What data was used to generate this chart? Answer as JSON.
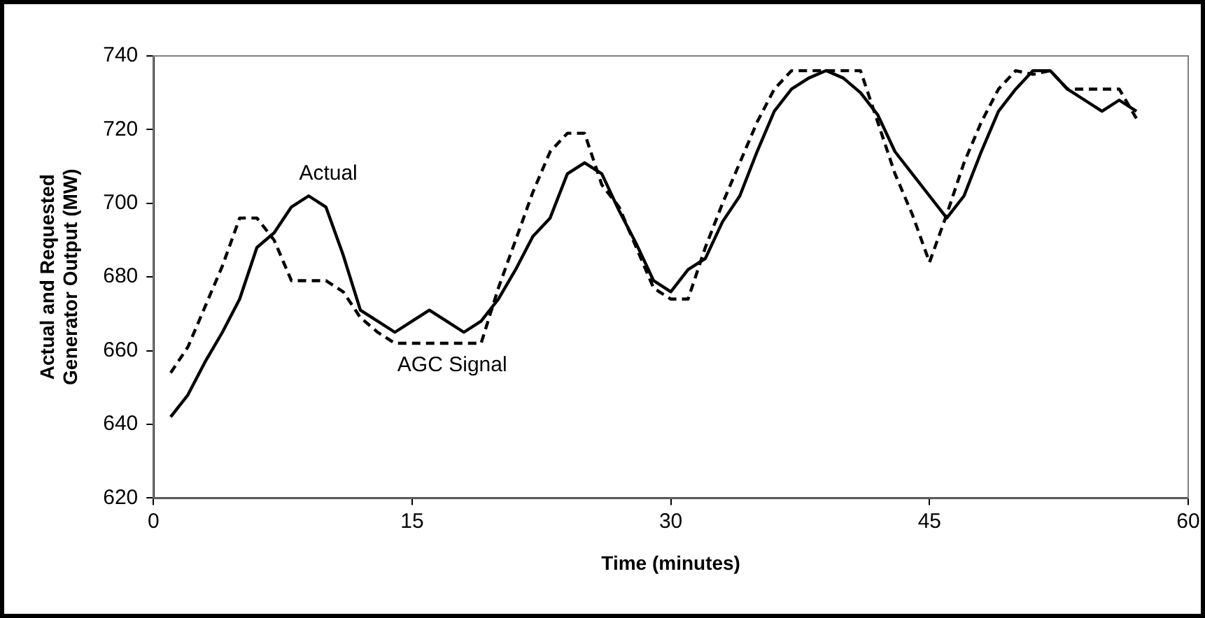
{
  "chart_data": {
    "type": "line",
    "xlabel": "Time (minutes)",
    "ylabel": "Actual and Requested Generator Output (MW)",
    "x": [
      1,
      2,
      3,
      4,
      5,
      6,
      7,
      8,
      9,
      10,
      11,
      12,
      13,
      14,
      15,
      16,
      17,
      18,
      19,
      20,
      21,
      22,
      23,
      24,
      25,
      26,
      27,
      28,
      29,
      30,
      31,
      32,
      33,
      34,
      35,
      36,
      37,
      38,
      39,
      40,
      41,
      42,
      43,
      44,
      45,
      46,
      47,
      48,
      49,
      50,
      51,
      52,
      53,
      54,
      55,
      56,
      57
    ],
    "series": [
      {
        "name": "Actual",
        "color": "#000000",
        "line_style": "solid",
        "values": [
          642,
          648,
          657,
          665,
          674,
          688,
          692,
          699,
          702,
          699,
          686,
          671,
          668,
          665,
          668,
          671,
          668,
          665,
          668,
          674,
          682,
          691,
          696,
          708,
          711,
          708,
          698,
          689,
          679,
          676,
          682,
          685,
          695,
          702,
          714,
          725,
          731,
          734,
          736,
          734,
          730,
          724,
          714,
          708,
          702,
          696,
          702,
          714,
          725,
          731,
          736,
          736,
          731,
          728,
          725,
          728,
          725
        ]
      },
      {
        "name": "AGC Signal",
        "color": "#000000",
        "line_style": "dashed",
        "values": [
          654,
          661,
          672,
          683,
          696,
          696,
          690,
          679,
          679,
          679,
          676,
          669,
          665,
          662,
          662,
          662,
          662,
          662,
          662,
          677,
          690,
          703,
          714,
          719,
          719,
          705,
          699,
          688,
          677,
          674,
          674,
          688,
          700,
          711,
          722,
          731,
          736,
          736,
          736,
          736,
          736,
          722,
          708,
          697,
          684,
          697,
          711,
          722,
          731,
          736,
          735,
          736,
          731,
          731,
          731,
          731,
          723
        ]
      }
    ],
    "xlim": [
      0,
      60
    ],
    "xticks": [
      0,
      15,
      30,
      45,
      60
    ],
    "ylim": [
      620,
      740
    ],
    "yticks": [
      620,
      640,
      660,
      680,
      700,
      720,
      740
    ],
    "grid": false,
    "legend": false,
    "marker": "none"
  }
}
